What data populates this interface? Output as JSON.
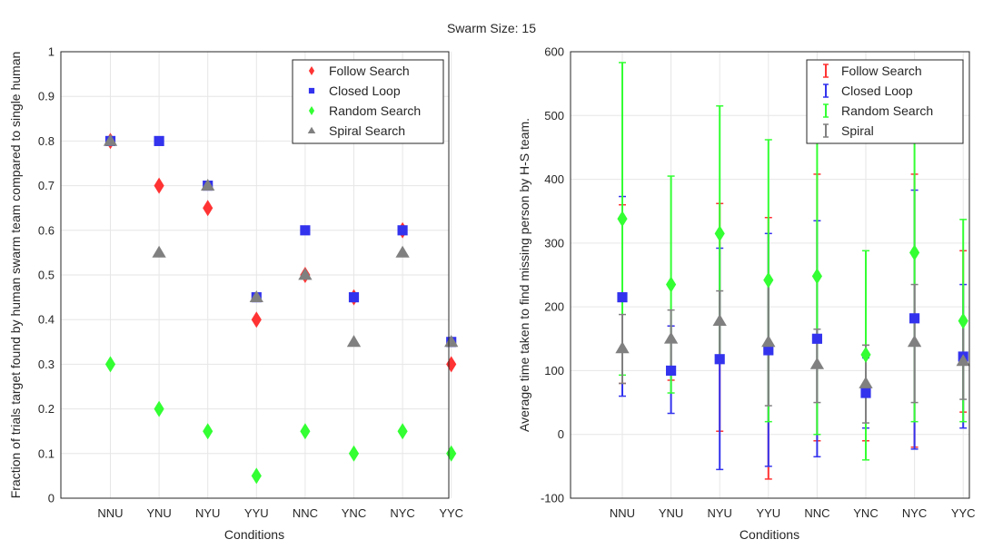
{
  "title": "Swarm Size: 15",
  "colors": {
    "follow": "#ff3333",
    "closed": "#3333ee",
    "random": "#33ff33",
    "spiral": "#808080",
    "grid": "#e6e6e6",
    "axis": "#262626"
  },
  "chart_data": [
    {
      "type": "scatter",
      "xlabel": "Conditions",
      "ylabel": "Fraction of trials target found by human swarm team compared to single human",
      "categories": [
        "NNU",
        "YNU",
        "NYU",
        "YYU",
        "NNC",
        "YNC",
        "NYC",
        "YYC"
      ],
      "ylim": [
        0,
        1
      ],
      "yticks": [
        "0",
        "0.1",
        "0.2",
        "0.3",
        "0.4",
        "0.5",
        "0.6",
        "0.7",
        "0.8",
        "0.9",
        "1"
      ],
      "grid": true,
      "legend_position": "top-right",
      "series": [
        {
          "name": "Follow Search",
          "marker": "diamond",
          "color": "#ff3333",
          "values": [
            0.8,
            0.7,
            0.65,
            0.4,
            0.5,
            0.45,
            0.6,
            0.3
          ]
        },
        {
          "name": "Closed Loop",
          "marker": "square",
          "color": "#3333ee",
          "values": [
            0.8,
            0.8,
            0.7,
            0.45,
            0.6,
            0.45,
            0.6,
            0.35
          ]
        },
        {
          "name": "Random Search",
          "marker": "diamond",
          "color": "#33ff33",
          "values": [
            0.3,
            0.2,
            0.15,
            0.05,
            0.15,
            0.1,
            0.15,
            0.1
          ]
        },
        {
          "name": "Spiral Search",
          "marker": "triangle",
          "color": "#808080",
          "values": [
            0.8,
            0.55,
            0.7,
            0.45,
            0.5,
            0.35,
            0.55,
            0.35
          ]
        }
      ]
    },
    {
      "type": "errorbar",
      "xlabel": "Conditions",
      "ylabel": "Average time taken to find missing person by H-S team.",
      "categories": [
        "NNU",
        "YNU",
        "NYU",
        "YYU",
        "NNC",
        "YNC",
        "NYC",
        "YYC"
      ],
      "ylim": [
        -100,
        600
      ],
      "yticks": [
        "-100",
        "0",
        "100",
        "200",
        "300",
        "400",
        "500",
        "600"
      ],
      "grid": true,
      "legend_position": "top-right",
      "series": [
        {
          "name": "Follow Search",
          "color": "#ff3333",
          "marker": "none",
          "values": [
            220,
            120,
            190,
            135,
            220,
            65,
            195,
            160
          ],
          "lower": [
            80,
            85,
            5,
            -70,
            -10,
            -10,
            -20,
            35
          ],
          "upper": [
            360,
            170,
            362,
            340,
            408,
            140,
            408,
            288
          ]
        },
        {
          "name": "Closed Loop",
          "color": "#3333ee",
          "marker": "square",
          "values": [
            215,
            100,
            118,
            132,
            150,
            65,
            182,
            122
          ],
          "lower": [
            60,
            33,
            -55,
            -50,
            -35,
            10,
            -23,
            10
          ],
          "upper": [
            373,
            170,
            292,
            315,
            335,
            120,
            383,
            235
          ]
        },
        {
          "name": "Random Search",
          "color": "#33ff33",
          "marker": "diamond",
          "values": [
            338,
            235,
            315,
            242,
            248,
            125,
            285,
            178
          ],
          "lower": [
            93,
            65,
            115,
            20,
            0,
            -40,
            20,
            20
          ],
          "upper": [
            583,
            405,
            515,
            462,
            496,
            288,
            550,
            337
          ]
        },
        {
          "name": "Spiral",
          "color": "#808080",
          "marker": "triangle",
          "values": [
            135,
            150,
            178,
            145,
            110,
            80,
            145,
            115
          ],
          "lower": [
            80,
            105,
            120,
            45,
            50,
            18,
            50,
            55
          ],
          "upper": [
            188,
            195,
            225,
            240,
            165,
            140,
            235,
            175
          ]
        }
      ]
    }
  ]
}
